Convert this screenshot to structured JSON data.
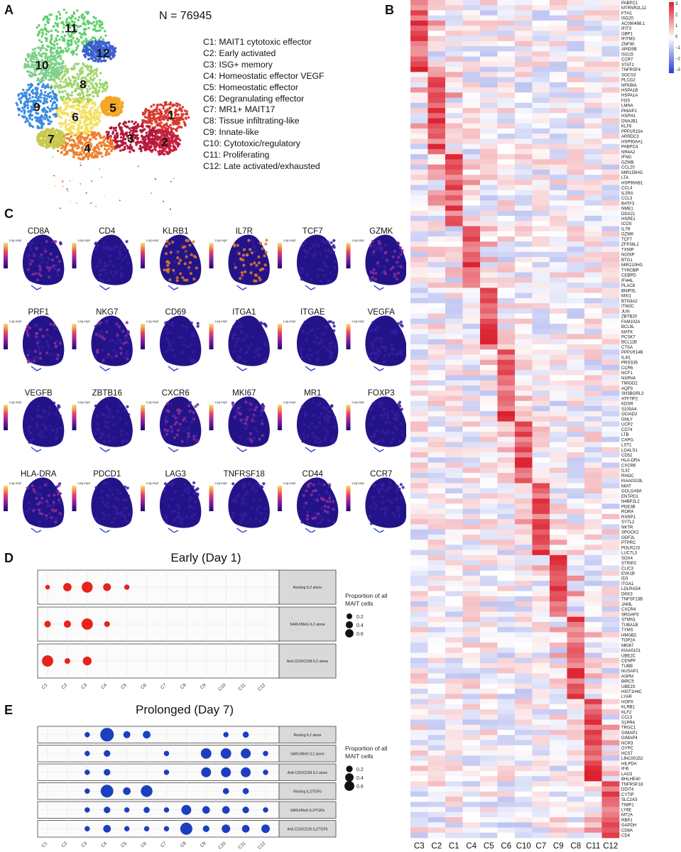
{
  "panel_labels": {
    "A": "A",
    "B": "B",
    "C": "C",
    "D": "D",
    "E": "E"
  },
  "panelA": {
    "n_label": "N = 76945",
    "cluster_numbers": [
      "1",
      "2",
      "3",
      "4",
      "5",
      "6",
      "7",
      "8",
      "9",
      "10",
      "11",
      "12"
    ],
    "cluster_colors": [
      "#d63a2f",
      "#c41f3c",
      "#b3183a",
      "#f07f2a",
      "#f5a623",
      "#f2e05a",
      "#c9c94f",
      "#9ed46a",
      "#3a8be0",
      "#7fd18a",
      "#5fd06b",
      "#3b5fd1"
    ],
    "legend": [
      "C1: MAIT1 cytotoxic effector",
      "C2: Early activated",
      "C3: ISG+ memory",
      "C4: Homeostatic effector VEGF",
      "C5: Homeostatic effector",
      "C6: Degranulating effector",
      "C7: MR1+ MAIT17",
      "C8: Tissue infiltrating-like",
      "C9: Innate-like",
      "C10: Cytotoxic/regulatory",
      "C11: Proliferating",
      "C12: Late activated/exhausted"
    ]
  },
  "panelC": {
    "colorbar_label": "Log expr",
    "genes": [
      "CD8A",
      "CD4",
      "KLRB1",
      "IL7R",
      "TCF7",
      "GZMK",
      "PRF1",
      "NKG7",
      "CD69",
      "ITGA1",
      "ITGAE",
      "VEGFA",
      "VEGFB",
      "ZBTB16",
      "CXCR6",
      "MKI67",
      "MR1",
      "FOXP3",
      "HLA-DRA",
      "PDCD1",
      "LAG3",
      "TNFRSF18",
      "CD44",
      "CCR7"
    ],
    "expression_level": [
      0.55,
      0.1,
      0.8,
      0.75,
      0.1,
      0.6,
      0.45,
      0.5,
      0.3,
      0.25,
      0.2,
      0.05,
      0.3,
      0.2,
      0.55,
      0.45,
      0.1,
      0.05,
      0.55,
      0.2,
      0.2,
      0.1,
      0.45,
      0.1
    ]
  },
  "chart_data": [
    {
      "type": "scatter",
      "title": "Early (Day 1)",
      "categories": [
        "C1",
        "C2",
        "C3",
        "C4",
        "C5",
        "C6",
        "C7",
        "C8",
        "C9",
        "C10",
        "C11",
        "C12"
      ],
      "facets": [
        "Resting IL2 alone",
        "5ARU/MeG IL2 alone",
        "Anti-CD3/CD28 IL2 alone"
      ],
      "size_values": [
        [
          0.05,
          0.3,
          0.6,
          0.25,
          0.08,
          0,
          0,
          0,
          0,
          0,
          0,
          0
        ],
        [
          0.15,
          0.2,
          0.65,
          0.1,
          0,
          0,
          0,
          0,
          0,
          0,
          0,
          0
        ],
        [
          0.65,
          0.1,
          0.35,
          0,
          0,
          0,
          0,
          0,
          0,
          0,
          0,
          0
        ]
      ],
      "color": "#e8221c",
      "legend_title": "Proportion of all MAIT cells",
      "legend_values": [
        "0.2",
        "0.4",
        "0.6"
      ]
    },
    {
      "type": "scatter",
      "title": "Prolonged (Day 7)",
      "categories": [
        "C1",
        "C2",
        "C3",
        "C4",
        "C5",
        "C6",
        "C7",
        "C8",
        "C9",
        "C10",
        "C11",
        "C12"
      ],
      "facets": [
        "Resting IL2 alone",
        "5ARU/MeG IL2 alone",
        "Anti-CD3/CD28 IL2 alone",
        "Resting IL2/TGFb",
        "5ARU/MeG IL2/TGFb",
        "Anti-CD3/CD28 IL2/TGFb"
      ],
      "size_values": [
        [
          0,
          0,
          0.05,
          0.65,
          0.12,
          0.15,
          0,
          0,
          0,
          0.05,
          0.08,
          0
        ],
        [
          0,
          0,
          0.05,
          0.1,
          0,
          0,
          0.05,
          0,
          0.35,
          0.35,
          0.3,
          0.05
        ],
        [
          0,
          0,
          0.05,
          0.1,
          0,
          0,
          0.05,
          0,
          0.3,
          0.3,
          0.3,
          0.05
        ],
        [
          0,
          0,
          0.05,
          0.55,
          0.15,
          0.45,
          0,
          0,
          0,
          0.08,
          0.08,
          0
        ],
        [
          0,
          0,
          0.05,
          0.1,
          0.05,
          0.08,
          0.05,
          0.3,
          0.15,
          0.15,
          0.1,
          0.05
        ],
        [
          0,
          0,
          0.05,
          0.15,
          0.05,
          0.05,
          0.05,
          0.5,
          0.1,
          0.2,
          0.15,
          0.2
        ]
      ],
      "color": "#1b3fbf",
      "legend_title": "Proportion of all MAIT cells",
      "legend_values": [
        "0.2",
        "0.4",
        "0.6"
      ]
    },
    {
      "type": "heatmap",
      "columns": [
        "C3",
        "C2",
        "C1",
        "C4",
        "C5",
        "C6",
        "C10",
        "C7",
        "C9",
        "C8",
        "C11",
        "C12"
      ],
      "rows": [
        "PABPC1",
        "MTRNR2L12",
        "FTH1",
        "ISG20",
        "AC090498.1",
        "IFIT3",
        "GBP1",
        "IFITM3",
        "ZNF90",
        "ARID5B",
        "ISG15",
        "CCR7",
        "STAT1",
        "TNFRSF4",
        "SOCS3",
        "PLCG2",
        "NFKBIA",
        "HSPA1B",
        "HSPA1A",
        "FOS",
        "LMNA",
        "PMAIP1",
        "HSPH1",
        "DNAJB1",
        "KLF6",
        "PPP1R15A",
        "ARRDC3",
        "HSP90AA1",
        "PABPC4",
        "NR4A2",
        "IFNG",
        "GZMB",
        "CCL20",
        "MIR155HG",
        "LTA",
        "HSP90AB1",
        "CCL4",
        "IL2RA",
        "CCL3",
        "BATF3",
        "NME1",
        "DDX21",
        "HSPE1",
        "ICOS",
        "IL7R",
        "GZMK",
        "TCF7",
        "ZFP36L2",
        "TXNIP",
        "NOSIP",
        "BTG1",
        "MIR210HG",
        "TYROBP",
        "CEBPD",
        "IFI44L",
        "PLAC8",
        "BNIP3L",
        "MXI1",
        "BTN3A2",
        "ITM2C",
        "JUN",
        "ZBTB20",
        "FAM102A",
        "BCL9L",
        "MATK",
        "PCSK7",
        "BCL11B",
        "CTSA",
        "PPP1R14B",
        "IL4I1",
        "PRSS35",
        "CCR6",
        "NCF1",
        "NXPH4",
        "TMIGD2",
        "AQP3",
        "SH3BGRL3",
        "ATF7IP2",
        "KDSR",
        "S100A4",
        "OCIAD2",
        "GNLY",
        "UCP2",
        "CD74",
        "LTB",
        "CAPG",
        "LST1",
        "LGALS1",
        "CD52",
        "HLA-DRA",
        "CXCR6",
        "IL32",
        "RHOC",
        "KIAA0319L",
        "MIAT",
        "GOLGA8A",
        "ENTPD1",
        "N4BP2L2",
        "PDE3B",
        "RORA",
        "RSRP1",
        "SYTL2",
        "NKTR",
        "SPOCK2",
        "ODF2L",
        "PTPRC",
        "POLR2J3",
        "LUC7L3",
        "SOX4",
        "STRIP2",
        "CLIC3",
        "EVA1B",
        "ID3",
        "ITGA1",
        "LDLRAD4",
        "DKK3",
        "TNFSF13B",
        "JAML",
        "CXCR4",
        "SRGAP3",
        "STMN1",
        "TUBA1B",
        "TYMS",
        "HMGB2",
        "TOP2A",
        "MKI67",
        "KIAA0101",
        "UBE2C",
        "CENPF",
        "TUBB",
        "NUSAP1",
        "ASPM",
        "BIRC5",
        "UBE2S",
        "HIST1H4C",
        "LYAR",
        "HOPX",
        "KLRB1",
        "KLF2",
        "CCL5",
        "S1PR4",
        "TRGC1",
        "GIMAP1",
        "GIMAP4",
        "NCR3",
        "GYPC",
        "HCST",
        "LINC00152",
        "HILPDA",
        "IFI6",
        "LAG3",
        "BHLHE40",
        "TNFRSF18",
        "DDIT4",
        "CYTIP",
        "SLC2A3",
        "TIMP1",
        "LY6E",
        "MT2A",
        "RBPJ",
        "GAPDH",
        "CD8A",
        "CD4"
      ],
      "row_groups": [
        14,
        30,
        44,
        56,
        68,
        82,
        94,
        108,
        120,
        136,
        152,
        166
      ],
      "colorbar_ticks": [
        "3",
        "2",
        "1",
        "0",
        "−1",
        "−2",
        "−3"
      ],
      "range": [
        -3,
        3
      ]
    }
  ]
}
